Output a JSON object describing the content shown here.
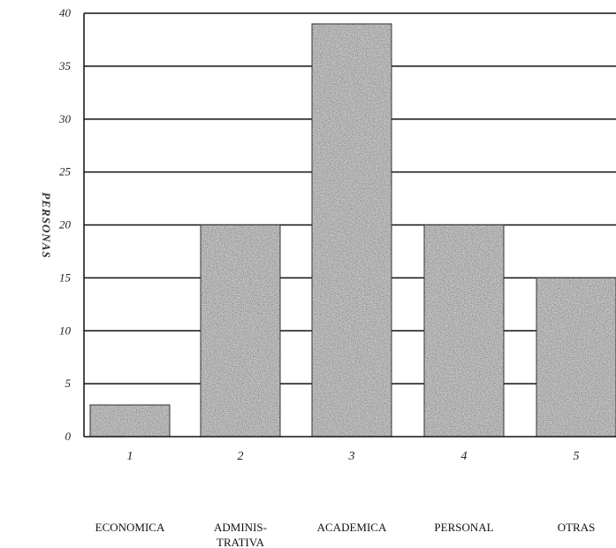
{
  "chart_data": {
    "type": "bar",
    "ylabel": "PERSONAS",
    "xlabel": "",
    "ylim": [
      0,
      40
    ],
    "yticks": [
      0,
      5,
      10,
      15,
      20,
      25,
      30,
      35,
      40
    ],
    "grid": true,
    "categories": [
      "1",
      "2",
      "3",
      "4",
      "5"
    ],
    "category_names": [
      [
        "ECONOMICA"
      ],
      [
        "ADMINIS-",
        "TRATIVA"
      ],
      [
        "ACADEMICA"
      ],
      [
        "PERSONAL"
      ],
      [
        "OTRAS"
      ]
    ],
    "values": [
      3,
      20,
      39,
      20,
      15
    ]
  },
  "colors": {
    "bar": "#6f6f6f",
    "grid": "#111111",
    "axis": "#111111"
  }
}
